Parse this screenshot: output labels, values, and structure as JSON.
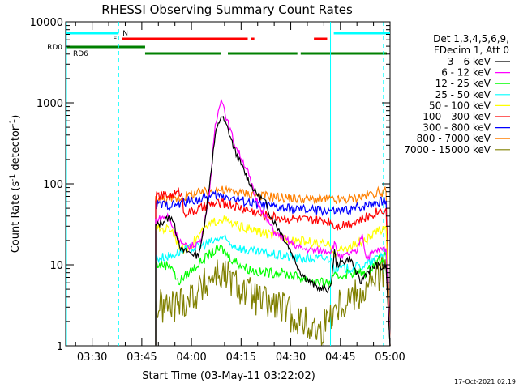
{
  "chart_data": {
    "type": "line",
    "title": "RHESSI Observing Summary Count Rates",
    "xlabel": "Start Time (03-May-11 03:22:02)",
    "ylabel_main": "Count Rate (s",
    "ylabel_sup1": "-1",
    "ylabel_mid": " detector",
    "ylabel_sup2": "-1",
    "ylabel_end": ")",
    "x_scale": "time",
    "x_range": [
      "03:22",
      "05:00"
    ],
    "x_ticks": [
      "03:30",
      "03:45",
      "04:00",
      "04:15",
      "04:30",
      "04:45",
      "05:00"
    ],
    "y_scale": "log",
    "y_range": [
      1,
      10000
    ],
    "y_ticks": [
      1,
      10,
      100,
      1000,
      10000
    ],
    "y_tick_labels": [
      "1",
      "10",
      "100",
      "1000",
      "10000"
    ],
    "legend": {
      "position": "right",
      "header": [
        "Det 1,3,4,5,6,9,",
        "FDecim 1, Att 0"
      ]
    },
    "timestamp": "17-Oct-2021 02:19",
    "flag_labels": {
      "n": "N",
      "f": "F",
      "rd0": "RD0",
      "rd6": "RD6"
    },
    "night_intervals": [
      [
        "03:22",
        "03:38"
      ],
      [
        "04:43",
        "05:00"
      ]
    ],
    "flare_intervals": [
      [
        "03:39",
        "04:17"
      ],
      [
        "04:18",
        "04:19"
      ],
      [
        "04:37",
        "04:41"
      ]
    ],
    "rd0_intervals": [
      [
        "03:22",
        "03:46"
      ]
    ],
    "rd6_intervals": [
      [
        "03:46",
        "04:09"
      ],
      [
        "04:11",
        "04:32"
      ],
      [
        "04:33",
        "04:59"
      ]
    ],
    "vlines_solid": [
      "03:22",
      "04:42"
    ],
    "vlines_dashed": [
      "03:38",
      "04:58"
    ],
    "series": [
      {
        "name": "3 - 6 keV",
        "color": "#000000",
        "values": [
          [
            3.82,
            0
          ],
          [
            3.82,
            30
          ],
          [
            3.9,
            40
          ],
          [
            3.95,
            15
          ],
          [
            4.0,
            14
          ],
          [
            4.03,
            13
          ],
          [
            4.05,
            18
          ],
          [
            4.08,
            60
          ],
          [
            4.12,
            400
          ],
          [
            4.15,
            700
          ],
          [
            4.18,
            500
          ],
          [
            4.22,
            250
          ],
          [
            4.28,
            120
          ],
          [
            4.32,
            80
          ],
          [
            4.37,
            60
          ],
          [
            4.4,
            40
          ],
          [
            4.45,
            25
          ],
          [
            4.5,
            15
          ],
          [
            4.55,
            8
          ],
          [
            4.6,
            6
          ],
          [
            4.65,
            5
          ],
          [
            4.7,
            5
          ],
          [
            4.72,
            15
          ],
          [
            4.73,
            10
          ],
          [
            4.8,
            12
          ],
          [
            4.83,
            8
          ],
          [
            4.85,
            6
          ],
          [
            4.88,
            8
          ],
          [
            4.93,
            10
          ],
          [
            4.96,
            9
          ],
          [
            4.98,
            10
          ],
          [
            5.0,
            0
          ]
        ]
      },
      {
        "name": "6 - 12 keV",
        "color": "#ff00ff",
        "values": [
          [
            3.82,
            0
          ],
          [
            3.82,
            36
          ],
          [
            3.88,
            40
          ],
          [
            3.92,
            25
          ],
          [
            3.96,
            17
          ],
          [
            4.0,
            17
          ],
          [
            4.05,
            20
          ],
          [
            4.09,
            80
          ],
          [
            4.12,
            500
          ],
          [
            4.15,
            1200
          ],
          [
            4.18,
            600
          ],
          [
            4.22,
            300
          ],
          [
            4.28,
            150
          ],
          [
            4.32,
            70
          ],
          [
            4.37,
            40
          ],
          [
            4.42,
            25
          ],
          [
            4.48,
            20
          ],
          [
            4.55,
            16
          ],
          [
            4.62,
            15
          ],
          [
            4.7,
            15
          ],
          [
            4.72,
            18
          ],
          [
            4.75,
            12
          ],
          [
            4.8,
            14
          ],
          [
            4.83,
            14
          ],
          [
            4.86,
            25
          ],
          [
            4.88,
            12
          ],
          [
            4.93,
            15
          ],
          [
            4.98,
            16
          ],
          [
            5.0,
            0
          ]
        ]
      },
      {
        "name": "12 - 25 keV",
        "color": "#00ff00",
        "values": [
          [
            3.82,
            0
          ],
          [
            3.82,
            10
          ],
          [
            3.9,
            10
          ],
          [
            3.93,
            6
          ],
          [
            3.96,
            7
          ],
          [
            4.03,
            10
          ],
          [
            4.1,
            14
          ],
          [
            4.15,
            16
          ],
          [
            4.2,
            12
          ],
          [
            4.28,
            9
          ],
          [
            4.35,
            8
          ],
          [
            4.45,
            8
          ],
          [
            4.55,
            7
          ],
          [
            4.65,
            6
          ],
          [
            4.7,
            6
          ],
          [
            4.72,
            7
          ],
          [
            4.8,
            8
          ],
          [
            4.88,
            8
          ],
          [
            4.93,
            11
          ],
          [
            4.98,
            13
          ],
          [
            5.0,
            0
          ]
        ]
      },
      {
        "name": "25 - 50 keV",
        "color": "#00ffff",
        "values": [
          [
            3.82,
            0
          ],
          [
            3.82,
            12
          ],
          [
            3.9,
            13
          ],
          [
            3.95,
            15
          ],
          [
            4.05,
            17
          ],
          [
            4.12,
            20
          ],
          [
            4.15,
            22
          ],
          [
            4.2,
            18
          ],
          [
            4.28,
            15
          ],
          [
            4.35,
            14
          ],
          [
            4.45,
            13
          ],
          [
            4.55,
            12
          ],
          [
            4.65,
            12
          ],
          [
            4.7,
            12
          ],
          [
            4.72,
            9
          ],
          [
            4.8,
            9
          ],
          [
            4.88,
            10
          ],
          [
            4.93,
            12
          ],
          [
            4.98,
            15
          ],
          [
            5.0,
            0
          ]
        ]
      },
      {
        "name": "50 - 100 keV",
        "color": "#ffff00",
        "values": [
          [
            3.82,
            0
          ],
          [
            3.82,
            28
          ],
          [
            3.9,
            28
          ],
          [
            3.95,
            15
          ],
          [
            4.0,
            18
          ],
          [
            4.05,
            25
          ],
          [
            4.1,
            32
          ],
          [
            4.15,
            38
          ],
          [
            4.2,
            32
          ],
          [
            4.28,
            28
          ],
          [
            4.35,
            25
          ],
          [
            4.45,
            22
          ],
          [
            4.55,
            20
          ],
          [
            4.65,
            18
          ],
          [
            4.7,
            17
          ],
          [
            4.72,
            14
          ],
          [
            4.8,
            17
          ],
          [
            4.88,
            20
          ],
          [
            4.93,
            25
          ],
          [
            4.98,
            30
          ],
          [
            5.0,
            0
          ]
        ]
      },
      {
        "name": "100 - 300 keV",
        "color": "#ff0000",
        "values": [
          [
            3.82,
            0
          ],
          [
            3.82,
            70
          ],
          [
            3.9,
            72
          ],
          [
            3.95,
            80
          ],
          [
            3.96,
            45
          ],
          [
            4.0,
            45
          ],
          [
            4.05,
            50
          ],
          [
            4.1,
            55
          ],
          [
            4.15,
            58
          ],
          [
            4.2,
            55
          ],
          [
            4.28,
            48
          ],
          [
            4.35,
            42
          ],
          [
            4.45,
            38
          ],
          [
            4.55,
            36
          ],
          [
            4.65,
            35
          ],
          [
            4.7,
            35
          ],
          [
            4.72,
            30
          ],
          [
            4.8,
            33
          ],
          [
            4.88,
            38
          ],
          [
            4.93,
            45
          ],
          [
            4.98,
            50
          ],
          [
            5.0,
            0
          ]
        ]
      },
      {
        "name": "300 - 800 keV",
        "color": "#0000ff",
        "values": [
          [
            3.82,
            0
          ],
          [
            3.82,
            55
          ],
          [
            3.9,
            55
          ],
          [
            3.95,
            56
          ],
          [
            3.96,
            60
          ],
          [
            4.05,
            65
          ],
          [
            4.12,
            72
          ],
          [
            4.18,
            70
          ],
          [
            4.25,
            62
          ],
          [
            4.35,
            55
          ],
          [
            4.45,
            50
          ],
          [
            4.55,
            48
          ],
          [
            4.65,
            47
          ],
          [
            4.7,
            47
          ],
          [
            4.72,
            45
          ],
          [
            4.8,
            48
          ],
          [
            4.88,
            55
          ],
          [
            4.93,
            60
          ],
          [
            4.98,
            62
          ],
          [
            5.0,
            0
          ]
        ]
      },
      {
        "name": "800 - 7000 keV",
        "color": "#ff7f00",
        "values": [
          [
            3.82,
            0
          ],
          [
            3.82,
            65
          ],
          [
            3.9,
            65
          ],
          [
            3.95,
            68
          ],
          [
            3.96,
            70
          ],
          [
            4.05,
            78
          ],
          [
            4.12,
            85
          ],
          [
            4.18,
            82
          ],
          [
            4.25,
            78
          ],
          [
            4.35,
            72
          ],
          [
            4.45,
            68
          ],
          [
            4.55,
            65
          ],
          [
            4.65,
            64
          ],
          [
            4.7,
            64
          ],
          [
            4.72,
            62
          ],
          [
            4.8,
            65
          ],
          [
            4.88,
            72
          ],
          [
            4.93,
            78
          ],
          [
            4.98,
            80
          ],
          [
            5.0,
            0
          ]
        ]
      },
      {
        "name": "7000 - 15000 keV",
        "color": "#808000",
        "values": [
          [
            3.82,
            0
          ],
          [
            3.82,
            3
          ],
          [
            3.9,
            3
          ],
          [
            3.95,
            3.5
          ],
          [
            4.05,
            5
          ],
          [
            4.12,
            8
          ],
          [
            4.18,
            7
          ],
          [
            4.25,
            5
          ],
          [
            4.35,
            3.5
          ],
          [
            4.45,
            3
          ],
          [
            4.55,
            2
          ],
          [
            4.65,
            1.5
          ],
          [
            4.72,
            3
          ],
          [
            4.8,
            4
          ],
          [
            4.88,
            5
          ],
          [
            4.93,
            7
          ],
          [
            4.98,
            9
          ],
          [
            5.0,
            0
          ]
        ]
      }
    ]
  }
}
